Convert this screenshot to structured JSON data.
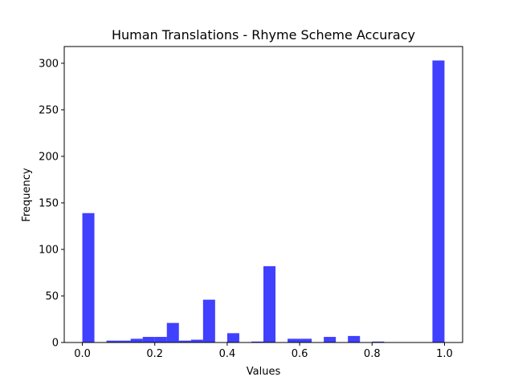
{
  "chart_data": {
    "type": "bar",
    "title": "Human Translations - Rhyme Scheme Accuracy",
    "xlabel": "Values",
    "ylabel": "Frequency",
    "xlim": [
      -0.05,
      1.05
    ],
    "ylim": [
      0,
      318
    ],
    "xticks": [
      0.0,
      0.2,
      0.4,
      0.6,
      0.8,
      1.0
    ],
    "xtick_labels": [
      "0.0",
      "0.2",
      "0.4",
      "0.6",
      "0.8",
      "1.0"
    ],
    "yticks": [
      0,
      50,
      100,
      150,
      200,
      250,
      300
    ],
    "ytick_labels": [
      "0",
      "50",
      "100",
      "150",
      "200",
      "250",
      "300"
    ],
    "bin_width": 0.0333,
    "bars": [
      {
        "x": 0.0,
        "value": 139
      },
      {
        "x": 0.0667,
        "value": 2
      },
      {
        "x": 0.1,
        "value": 2
      },
      {
        "x": 0.1333,
        "value": 4
      },
      {
        "x": 0.1667,
        "value": 6
      },
      {
        "x": 0.2,
        "value": 6
      },
      {
        "x": 0.2333,
        "value": 21
      },
      {
        "x": 0.2667,
        "value": 2
      },
      {
        "x": 0.3,
        "value": 3
      },
      {
        "x": 0.3333,
        "value": 46
      },
      {
        "x": 0.4,
        "value": 10
      },
      {
        "x": 0.4667,
        "value": 1
      },
      {
        "x": 0.5,
        "value": 82
      },
      {
        "x": 0.5667,
        "value": 4
      },
      {
        "x": 0.6,
        "value": 4
      },
      {
        "x": 0.6667,
        "value": 6
      },
      {
        "x": 0.7333,
        "value": 7
      },
      {
        "x": 0.8,
        "value": 1
      },
      {
        "x": 0.9667,
        "value": 303
      }
    ],
    "bar_color": "#0000ff",
    "bar_opacity": 0.75,
    "grid": false,
    "legend": false
  }
}
